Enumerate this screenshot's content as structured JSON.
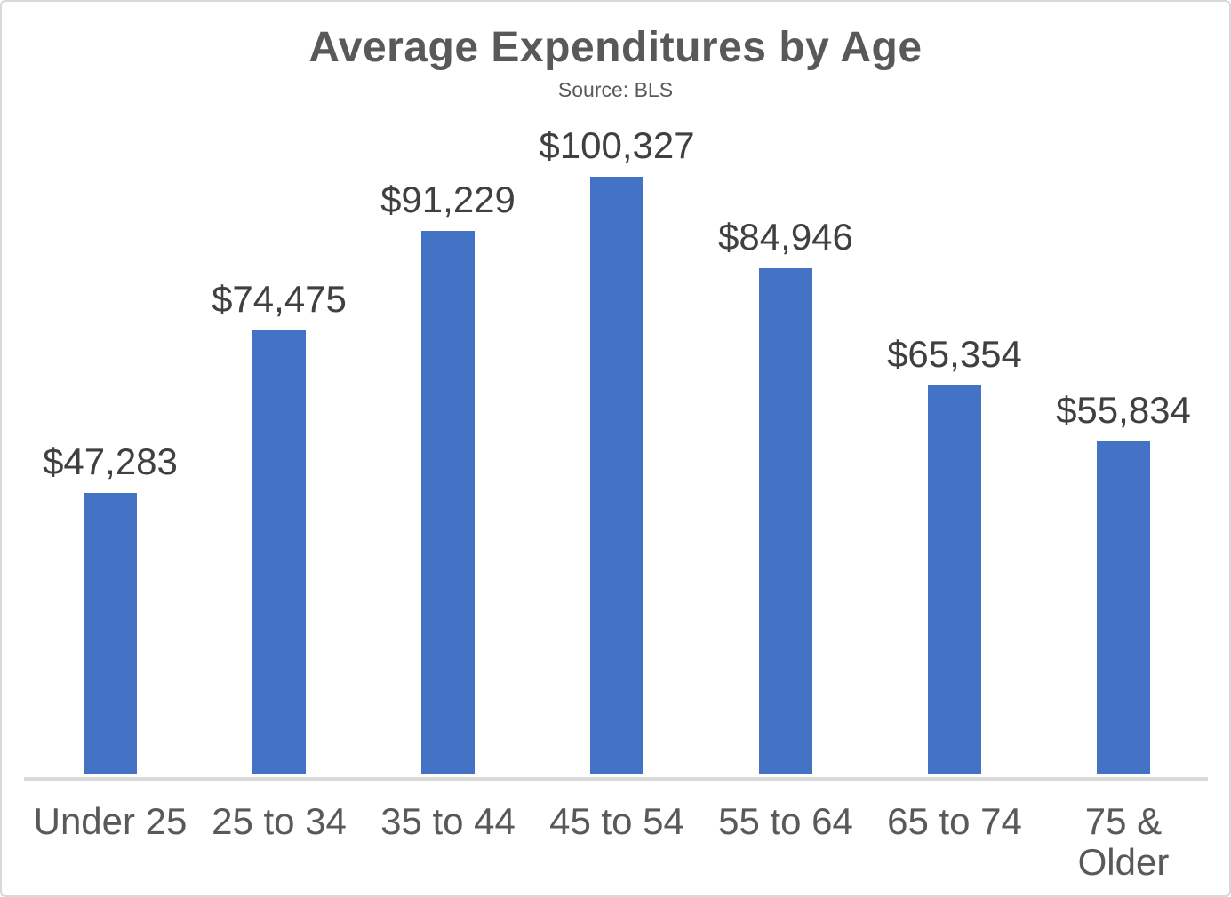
{
  "chart_data": {
    "type": "bar",
    "title": "Average Expenditures by Age",
    "subtitle": "Source: BLS",
    "categories": [
      "Under 25",
      "25 to 34",
      "35 to 44",
      "45 to 54",
      "55 to 64",
      "65 to 74",
      "75 & Older"
    ],
    "values": [
      47283,
      74475,
      91229,
      100327,
      84946,
      65354,
      55834
    ],
    "value_labels": [
      "$47,283",
      "$74,475",
      "$91,229",
      "$100,327",
      "$84,946",
      "$65,354",
      "$55,834"
    ],
    "xlabel": "",
    "ylabel": "",
    "ylim": [
      0,
      100327
    ],
    "grid": false,
    "legend": false,
    "data_labels_shown": true
  },
  "colors": {
    "bar": "#4472C4",
    "title": "#595959",
    "subtitle": "#595959",
    "data_label": "#404040",
    "axis_label": "#595959",
    "axis_line": "#D9D9D9",
    "border": "#D9D9D9",
    "background": "#FFFFFF"
  }
}
